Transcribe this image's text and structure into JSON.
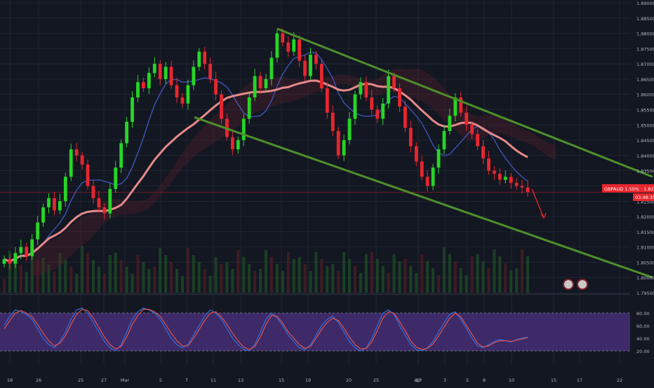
{
  "symbol_badge": {
    "text": "GBPAUD 1.50% · 1.82795",
    "countdown": "03:48:35"
  },
  "colors": {
    "background": "#131722",
    "grid": "#2a2e39",
    "bull": "#26d626",
    "bear": "#e8262e",
    "trendline": "#4f8f2a",
    "ma_long": "#e58a8a",
    "ma_mid": "#3e55b5",
    "rsi_fill": "#3e2a68",
    "stoch_k": "#2d6ee0",
    "stoch_d": "#e0524a",
    "badge": "#e8262e"
  },
  "chart_data": [
    {
      "type": "line",
      "title": "",
      "x_ticks": [
        "18",
        "26",
        "25",
        "27",
        "Mar",
        "5",
        "7",
        "11",
        "13",
        "15",
        "19",
        "20",
        "25",
        "27",
        "Apr",
        "3",
        "5",
        "8",
        "10",
        "15",
        "17",
        "22"
      ],
      "y_ticks": [
        "1.89000",
        "1.88500",
        "1.88000",
        "1.87500",
        "1.87000",
        "1.86500",
        "1.86000",
        "1.85500",
        "1.85000",
        "1.84500",
        "1.84000",
        "1.83500",
        "1.83000",
        "1.82795",
        "1.82500",
        "1.82000",
        "1.81500",
        "1.81000",
        "1.80500",
        "1.80000",
        "1.79500"
      ],
      "ylim": [
        1.795,
        1.89
      ],
      "last_price": 1.82795,
      "candles_close": [
        1.806,
        1.8045,
        1.808,
        1.81,
        1.807,
        1.8125,
        1.818,
        1.823,
        1.826,
        1.822,
        1.825,
        1.833,
        1.842,
        1.84,
        1.837,
        1.83,
        1.826,
        1.823,
        1.821,
        1.829,
        1.836,
        1.844,
        1.851,
        1.859,
        1.864,
        1.862,
        1.867,
        1.87,
        1.865,
        1.869,
        1.863,
        1.859,
        1.857,
        1.863,
        1.869,
        1.874,
        1.87,
        1.865,
        1.86,
        1.852,
        1.846,
        1.842,
        1.845,
        1.852,
        1.859,
        1.866,
        1.862,
        1.865,
        1.872,
        1.88,
        1.877,
        1.874,
        1.878,
        1.871,
        1.866,
        1.873,
        1.87,
        1.862,
        1.854,
        1.848,
        1.84,
        1.845,
        1.852,
        1.86,
        1.864,
        1.859,
        1.855,
        1.852,
        1.857,
        1.866,
        1.862,
        1.856,
        1.849,
        1.843,
        1.838,
        1.833,
        1.83,
        1.836,
        1.842,
        1.848,
        1.853,
        1.859,
        1.854,
        1.85,
        1.847,
        1.843,
        1.839,
        1.835,
        1.834,
        1.832,
        1.833,
        1.831,
        1.83,
        1.8295,
        1.828
      ],
      "trend_channel": {
        "upper": [
          {
            "x": "15",
            "y": 1.8815
          },
          {
            "x": "22",
            "y": 1.833
          }
        ],
        "lower": [
          {
            "x": "7",
            "y": 1.8525
          },
          {
            "x": "22",
            "y": 1.8
          }
        ]
      },
      "forecast_arrow": {
        "from": 1.829,
        "to": 1.8195
      }
    },
    {
      "type": "line",
      "title": "",
      "y_ticks": [
        "80.00",
        "60.00",
        "40.00",
        "20.00"
      ],
      "ylim": [
        10,
        90
      ],
      "band": [
        20,
        80
      ],
      "series": [
        {
          "values": [
            60,
            75,
            85,
            82,
            78,
            70,
            55,
            40,
            30,
            25,
            35,
            50,
            70,
            85,
            88,
            80,
            65,
            50,
            35,
            25,
            20,
            30,
            50,
            70,
            82,
            88,
            85,
            80,
            70,
            55,
            40,
            30,
            25,
            30,
            45,
            60,
            75,
            85,
            80,
            70,
            55,
            40,
            30,
            22,
            20,
            30,
            50,
            70,
            80,
            72,
            60,
            45,
            35,
            25,
            22,
            30,
            45,
            60,
            70,
            75,
            65,
            50,
            35,
            25,
            20,
            25,
            40,
            60,
            80,
            85,
            78,
            60,
            45,
            30,
            22,
            20,
            25,
            35,
            50,
            65,
            78,
            82,
            70,
            55,
            40,
            28,
            25,
            30,
            35,
            38,
            36,
            34,
            38,
            40,
            42
          ]
        },
        {
          "values": [
            55,
            68,
            80,
            84,
            80,
            74,
            62,
            48,
            36,
            28,
            32,
            44,
            62,
            78,
            86,
            84,
            72,
            57,
            42,
            30,
            23,
            27,
            42,
            62,
            76,
            86,
            86,
            82,
            75,
            62,
            48,
            36,
            28,
            28,
            40,
            54,
            68,
            80,
            82,
            74,
            62,
            48,
            36,
            26,
            22,
            27,
            42,
            62,
            76,
            75,
            64,
            50,
            40,
            30,
            24,
            27,
            40,
            54,
            65,
            72,
            68,
            56,
            42,
            30,
            23,
            24,
            34,
            52,
            72,
            82,
            80,
            66,
            52,
            36,
            26,
            22,
            24,
            31,
            44,
            58,
            72,
            80,
            74,
            60,
            46,
            32,
            26,
            28,
            33,
            36,
            36,
            35,
            37,
            39,
            41
          ]
        }
      ]
    }
  ]
}
